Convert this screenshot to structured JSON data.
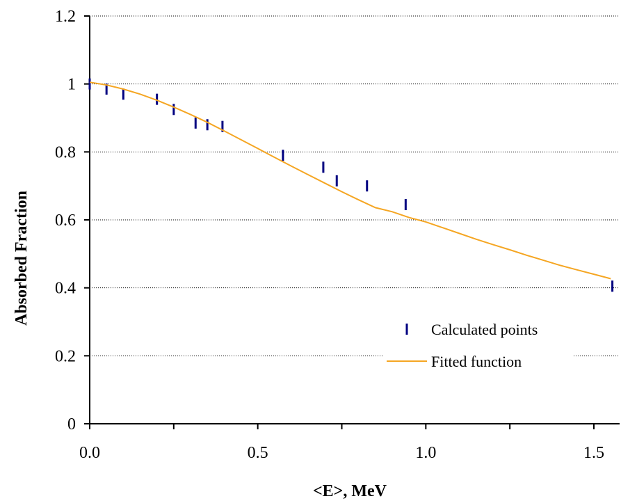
{
  "chart_data": {
    "type": "scatter",
    "title": "",
    "xlabel": "<E>, MeV",
    "ylabel": "Absorbed Fraction",
    "xlim": [
      0.0,
      1.56
    ],
    "ylim": [
      0,
      1.2
    ],
    "x_ticks": [
      "0.0",
      "0.5",
      "1.0",
      "1.5"
    ],
    "x_tick_values": [
      0.0,
      0.5,
      1.0,
      1.5
    ],
    "y_ticks": [
      "0",
      "0.2",
      "0.4",
      "0.6",
      "0.8",
      "1",
      "1.2"
    ],
    "y_tick_values": [
      0,
      0.2,
      0.4,
      0.6,
      0.8,
      1.0,
      1.2
    ],
    "grid": "horizontal dotted",
    "legend_position": "lower-right",
    "series": [
      {
        "name": "Calculated points",
        "kind": "scatter",
        "marker": "vertical-bar",
        "color": "#000080",
        "x": [
          0.0,
          0.05,
          0.1,
          0.2,
          0.25,
          0.315,
          0.35,
          0.395,
          0.575,
          0.695,
          0.735,
          0.825,
          0.94,
          1.555
        ],
        "y": [
          1.0,
          0.985,
          0.97,
          0.955,
          0.925,
          0.885,
          0.88,
          0.875,
          0.79,
          0.755,
          0.715,
          0.7,
          0.645,
          0.405
        ]
      },
      {
        "name": "Fitted function",
        "kind": "line",
        "color": "#F5A623",
        "x": [
          0.0,
          0.05,
          0.1,
          0.15,
          0.2,
          0.25,
          0.3,
          0.35,
          0.4,
          0.45,
          0.5,
          0.55,
          0.6,
          0.65,
          0.7,
          0.75,
          0.8,
          0.85,
          0.9,
          0.95,
          1.0,
          1.05,
          1.1,
          1.15,
          1.2,
          1.25,
          1.3,
          1.35,
          1.4,
          1.45,
          1.5,
          1.55
        ],
        "y": [
          1.005,
          0.997,
          0.985,
          0.97,
          0.952,
          0.932,
          0.91,
          0.887,
          0.862,
          0.836,
          0.81,
          0.784,
          0.758,
          0.733,
          0.708,
          0.683,
          0.659,
          0.636,
          0.624,
          0.607,
          0.594,
          0.577,
          0.56,
          0.543,
          0.527,
          0.512,
          0.496,
          0.481,
          0.466,
          0.453,
          0.44,
          0.427
        ]
      }
    ]
  }
}
